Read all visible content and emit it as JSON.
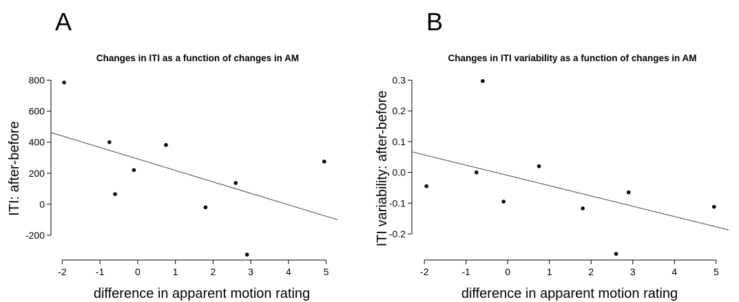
{
  "chart_data": [
    {
      "type": "scatter",
      "panel": "A",
      "title": "Changes in ITI  as a function of changes in AM",
      "xlabel": "difference in apparent motion rating",
      "ylabel": "ITI: after-before",
      "xlim": [
        -2.3,
        5.3
      ],
      "ylim": [
        -360,
        820
      ],
      "xticks": [
        -2,
        -1,
        0,
        1,
        2,
        3,
        4,
        5
      ],
      "yticks": [
        -200,
        0,
        200,
        400,
        600,
        800
      ],
      "xtick_labels": [
        "-2",
        "-1",
        "0",
        "1",
        "2",
        "3",
        "4",
        "5"
      ],
      "ytick_labels": [
        "-200",
        "0",
        "200",
        "400",
        "600",
        "800"
      ],
      "points": [
        {
          "x": -1.95,
          "y": 785
        },
        {
          "x": -0.75,
          "y": 400
        },
        {
          "x": -0.6,
          "y": 65
        },
        {
          "x": -0.1,
          "y": 220
        },
        {
          "x": 0.75,
          "y": 382
        },
        {
          "x": 1.8,
          "y": -20
        },
        {
          "x": 2.6,
          "y": 137
        },
        {
          "x": 2.9,
          "y": -325
        },
        {
          "x": 4.95,
          "y": 275
        }
      ],
      "fit_line": {
        "x": [
          -2.3,
          5.3
        ],
        "y": [
          462,
          -100
        ]
      }
    },
    {
      "type": "scatter",
      "panel": "B",
      "title": "Changes in ITI variability as a function of changes in AM",
      "xlabel": "difference in apparent motion rating",
      "ylabel": "ITI variability: after-before",
      "xlim": [
        -2.3,
        5.3
      ],
      "ylim": [
        -0.285,
        0.31
      ],
      "xticks": [
        -2,
        -1,
        0,
        1,
        2,
        3,
        4,
        5
      ],
      "yticks": [
        -0.2,
        -0.1,
        0.0,
        0.1,
        0.2,
        0.3
      ],
      "xtick_labels": [
        "-2",
        "-1",
        "0",
        "1",
        "2",
        "3",
        "4",
        "5"
      ],
      "ytick_labels": [
        "-0.2",
        "-0.1",
        "0.0",
        "0.1",
        "0.2",
        "0.3"
      ],
      "points": [
        {
          "x": -1.95,
          "y": -0.045
        },
        {
          "x": -0.75,
          "y": 0.0
        },
        {
          "x": -0.6,
          "y": 0.297
        },
        {
          "x": -0.1,
          "y": -0.095
        },
        {
          "x": 0.75,
          "y": 0.02
        },
        {
          "x": 1.8,
          "y": -0.117
        },
        {
          "x": 2.6,
          "y": -0.265
        },
        {
          "x": 2.9,
          "y": -0.065
        },
        {
          "x": 4.95,
          "y": -0.112
        }
      ],
      "fit_line": {
        "x": [
          -2.3,
          5.3
        ],
        "y": [
          0.067,
          -0.187
        ]
      }
    }
  ]
}
